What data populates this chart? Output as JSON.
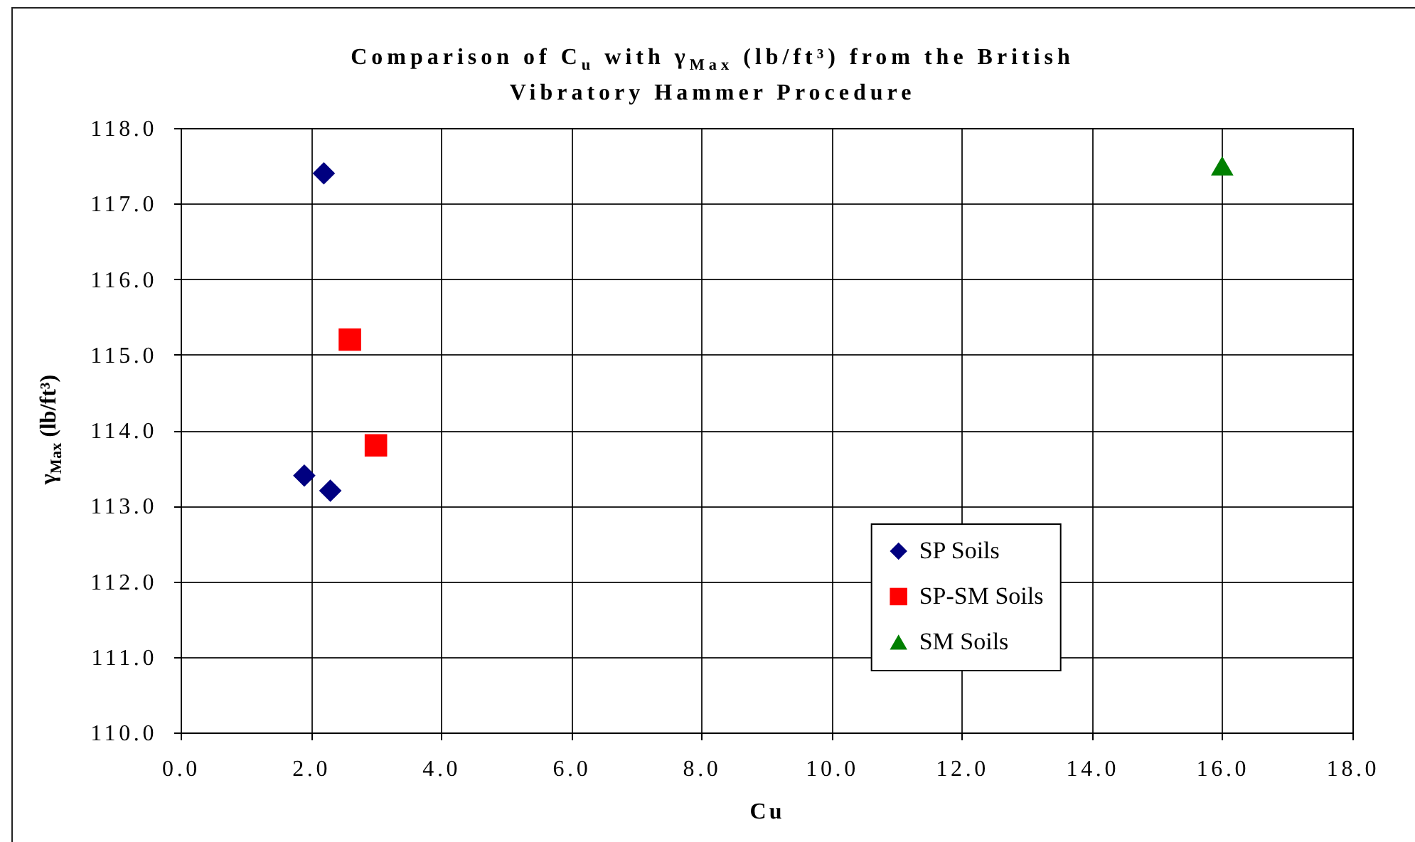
{
  "chart_data": {
    "type": "scatter",
    "title": "Comparison of C$_{u}$ with γ$_{Max}$ (lb/ft³) from the British Vibratory Hammer Procedure",
    "xlabel": "Cu",
    "ylabel": "γ$_{Max}$ (lb/ft³)",
    "series": [
      {
        "name": "SP Soils",
        "color": "#000080",
        "marker": "diamond",
        "x": [
          2.2,
          1.9,
          2.3
        ],
        "values": [
          117.4,
          113.4,
          113.2
        ]
      },
      {
        "name": "SP-SM Soils",
        "color": "#ff0000",
        "marker": "square",
        "x": [
          2.6,
          3.0
        ],
        "values": [
          115.2,
          113.8
        ]
      },
      {
        "name": "SM Soils",
        "color": "#008000",
        "marker": "triangle",
        "x": [
          16.0
        ],
        "values": [
          117.5
        ]
      }
    ],
    "xlim": [
      0,
      18
    ],
    "ylim": [
      110,
      118
    ],
    "xticks": [
      {
        "value": 0,
        "label": "0.0"
      },
      {
        "value": 2,
        "label": "2.0"
      },
      {
        "value": 4,
        "label": "4.0"
      },
      {
        "value": 6,
        "label": "6.0"
      },
      {
        "value": 8,
        "label": "8.0"
      },
      {
        "value": 10,
        "label": "10.0"
      },
      {
        "value": 12,
        "label": "12.0"
      },
      {
        "value": 14,
        "label": "14.0"
      },
      {
        "value": 16,
        "label": "16.0"
      },
      {
        "value": 18,
        "label": "18.0"
      }
    ],
    "yticks": [
      {
        "value": 110,
        "label": "110.0"
      },
      {
        "value": 111,
        "label": "111.0"
      },
      {
        "value": 112,
        "label": "112.0"
      },
      {
        "value": 113,
        "label": "113.0"
      },
      {
        "value": 114,
        "label": "114.0"
      },
      {
        "value": 115,
        "label": "115.0"
      },
      {
        "value": 116,
        "label": "116.0"
      },
      {
        "value": 117,
        "label": "117.0"
      },
      {
        "value": 118,
        "label": "118.0"
      }
    ],
    "grid": true,
    "legend": "bottom right"
  }
}
